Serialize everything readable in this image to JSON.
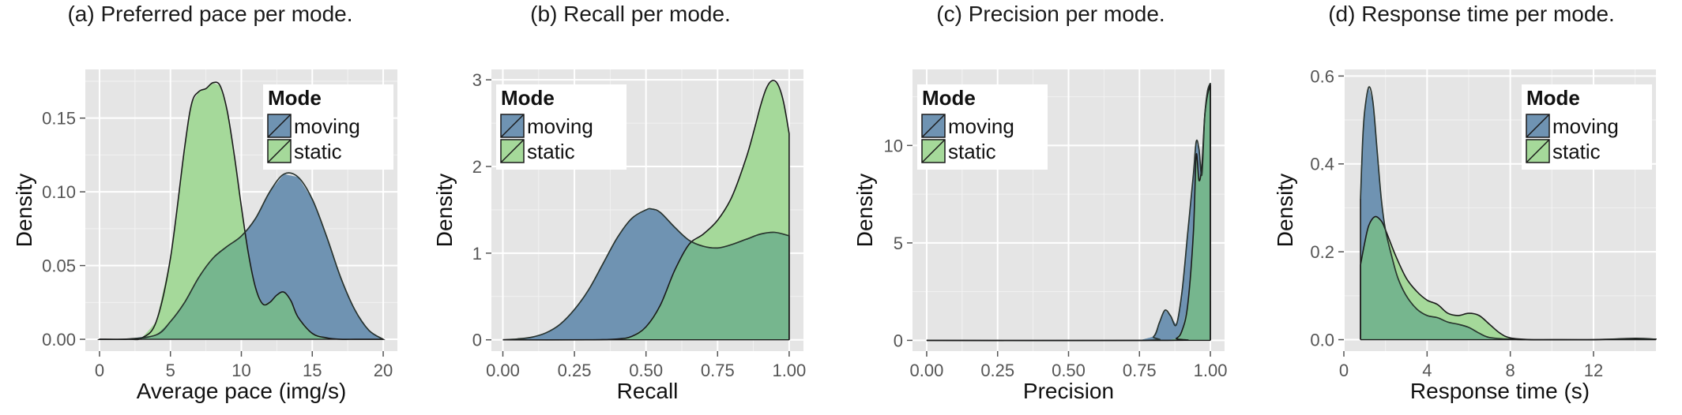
{
  "figure": {
    "panels": [
      {
        "id": "a",
        "title": "(a) Preferred pace per mode."
      },
      {
        "id": "b",
        "title": "(b) Recall per mode."
      },
      {
        "id": "c",
        "title": "(c) Precision per mode."
      },
      {
        "id": "d",
        "title": "(d) Response time per mode."
      }
    ]
  },
  "colors": {
    "moving": "#6f93b2",
    "static": "#a5d99a",
    "overlap": "#76b68e",
    "panel_bg": "#e5e5e5",
    "grid_major": "#ffffff",
    "grid_minor": "#f2f2f2",
    "outline": "#1a1a1a"
  },
  "chart_data": [
    {
      "type": "area",
      "title": "(a) Preferred pace per mode.",
      "xlabel": "Average pace (img/s)",
      "ylabel": "Density",
      "xlim": [
        -1,
        21
      ],
      "ylim": [
        -0.008,
        0.183
      ],
      "xticks": [
        0,
        5,
        10,
        15,
        20
      ],
      "xtick_labels": [
        "0",
        "5",
        "10",
        "15",
        "20"
      ],
      "yticks": [
        0,
        0.05,
        0.1,
        0.15
      ],
      "ytick_labels": [
        "0.00",
        "0.05",
        "0.10",
        "0.15"
      ],
      "grid": true,
      "legend": {
        "title": "Mode",
        "entries": [
          "moving",
          "static"
        ],
        "position": "top-right"
      },
      "series": [
        {
          "name": "moving",
          "x": [
            0,
            2,
            4,
            5,
            6,
            7,
            8,
            9,
            10,
            11,
            12,
            13,
            14,
            15,
            16,
            17,
            18,
            19,
            20
          ],
          "y": [
            0,
            0.0002,
            0.003,
            0.012,
            0.025,
            0.042,
            0.055,
            0.063,
            0.07,
            0.082,
            0.1,
            0.112,
            0.11,
            0.095,
            0.07,
            0.042,
            0.02,
            0.006,
            0
          ]
        },
        {
          "name": "static",
          "x": [
            0,
            2,
            3,
            4,
            5,
            6,
            6.5,
            7,
            7.5,
            8,
            8.5,
            9,
            9.5,
            10,
            10.5,
            11,
            11.5,
            12,
            12.5,
            13,
            13.5,
            14,
            15,
            16,
            17,
            18,
            19,
            20
          ],
          "y": [
            0,
            0,
            0.001,
            0.012,
            0.055,
            0.13,
            0.16,
            0.168,
            0.17,
            0.174,
            0.172,
            0.155,
            0.125,
            0.09,
            0.058,
            0.035,
            0.024,
            0.025,
            0.03,
            0.032,
            0.026,
            0.015,
            0.004,
            0.001,
            0,
            0,
            0,
            0
          ]
        }
      ]
    },
    {
      "type": "area",
      "title": "(b) Recall per mode.",
      "xlabel": "Recall",
      "ylabel": "Density",
      "xlim": [
        -0.04,
        1.05
      ],
      "ylim": [
        -0.13,
        3.12
      ],
      "xticks": [
        0,
        0.25,
        0.5,
        0.75,
        1
      ],
      "xtick_labels": [
        "0.00",
        "0.25",
        "0.50",
        "0.75",
        "1.00"
      ],
      "yticks": [
        0,
        1,
        2,
        3
      ],
      "ytick_labels": [
        "0",
        "1",
        "2",
        "3"
      ],
      "grid": true,
      "legend": {
        "title": "Mode",
        "entries": [
          "moving",
          "static"
        ],
        "position": "top-left"
      },
      "series": [
        {
          "name": "moving",
          "x": [
            0,
            0.05,
            0.1,
            0.15,
            0.2,
            0.25,
            0.3,
            0.35,
            0.4,
            0.45,
            0.5,
            0.52,
            0.55,
            0.6,
            0.65,
            0.7,
            0.75,
            0.8,
            0.85,
            0.9,
            0.95,
            1
          ],
          "y": [
            0,
            0.01,
            0.03,
            0.08,
            0.18,
            0.35,
            0.58,
            0.88,
            1.18,
            1.4,
            1.5,
            1.51,
            1.47,
            1.3,
            1.15,
            1.08,
            1.06,
            1.1,
            1.16,
            1.22,
            1.24,
            1.2
          ]
        },
        {
          "name": "static",
          "x": [
            0,
            0.3,
            0.4,
            0.45,
            0.5,
            0.55,
            0.6,
            0.65,
            0.7,
            0.75,
            0.8,
            0.85,
            0.88,
            0.9,
            0.92,
            0.94,
            0.96,
            0.98,
            1
          ],
          "y": [
            0,
            0,
            0.01,
            0.04,
            0.15,
            0.4,
            0.8,
            1.1,
            1.22,
            1.38,
            1.65,
            2.1,
            2.45,
            2.7,
            2.9,
            2.99,
            2.95,
            2.75,
            2.38
          ]
        }
      ]
    },
    {
      "type": "area",
      "title": "(c) Precision per mode.",
      "xlabel": "Precision",
      "ylabel": "Density",
      "xlim": [
        -0.05,
        1.05
      ],
      "ylim": [
        -0.55,
        13.9
      ],
      "xticks": [
        0,
        0.25,
        0.5,
        0.75,
        1
      ],
      "xtick_labels": [
        "0.00",
        "0.25",
        "0.50",
        "0.75",
        "1.00"
      ],
      "yticks": [
        0,
        5,
        10
      ],
      "ytick_labels": [
        "0",
        "5",
        "10"
      ],
      "grid": true,
      "legend": {
        "title": "Mode",
        "entries": [
          "moving",
          "static"
        ],
        "position": "top-left"
      },
      "series": [
        {
          "name": "moving",
          "x": [
            0,
            0.75,
            0.8,
            0.82,
            0.84,
            0.86,
            0.88,
            0.9,
            0.92,
            0.94,
            0.95,
            0.96,
            0.97,
            0.98,
            0.99,
            1
          ],
          "y": [
            0,
            0,
            0.2,
            0.9,
            1.55,
            1.25,
            0.8,
            2.5,
            5.5,
            8.5,
            10.2,
            9.8,
            8.5,
            11.5,
            12.8,
            13.2
          ]
        },
        {
          "name": "static",
          "x": [
            0,
            0.85,
            0.88,
            0.9,
            0.92,
            0.94,
            0.95,
            0.96,
            0.97,
            0.98,
            0.99,
            1
          ],
          "y": [
            0,
            0,
            0.1,
            0.5,
            1.8,
            5.5,
            9.5,
            8.2,
            9,
            11.5,
            12.6,
            13.1
          ]
        }
      ]
    },
    {
      "type": "area",
      "title": "(d) Response time per mode.",
      "xlabel": "Response time (s)",
      "ylabel": "Density",
      "xlim": [
        0,
        15
      ],
      "ylim": [
        -0.026,
        0.615
      ],
      "xticks": [
        0,
        4,
        8,
        12
      ],
      "xtick_labels": [
        "0",
        "4",
        "8",
        "12"
      ],
      "yticks": [
        0,
        0.2,
        0.4,
        0.6
      ],
      "ytick_labels": [
        "0.0",
        "0.2",
        "0.4",
        "0.6"
      ],
      "grid": true,
      "legend": {
        "title": "Mode",
        "entries": [
          "moving",
          "static"
        ],
        "position": "top-right"
      },
      "series": [
        {
          "name": "moving",
          "x": [
            0.8,
            0.9,
            1,
            1.2,
            1.4,
            1.6,
            1.8,
            2,
            2.3,
            2.6,
            3,
            3.5,
            4,
            4.5,
            5,
            5.5,
            6,
            6.5,
            7,
            8,
            9,
            10,
            12,
            14,
            15
          ],
          "y": [
            0.32,
            0.45,
            0.52,
            0.575,
            0.54,
            0.43,
            0.32,
            0.25,
            0.19,
            0.14,
            0.1,
            0.07,
            0.055,
            0.05,
            0.04,
            0.035,
            0.028,
            0.015,
            0.005,
            0.001,
            0,
            0,
            0,
            0.002,
            0.001
          ]
        },
        {
          "name": "static",
          "x": [
            0.8,
            1,
            1.2,
            1.5,
            1.8,
            2,
            2.5,
            3,
            3.5,
            4,
            4.5,
            5,
            5.5,
            6,
            6.5,
            7,
            7.5,
            8,
            9,
            10,
            12,
            14,
            15
          ],
          "y": [
            0.17,
            0.22,
            0.26,
            0.28,
            0.27,
            0.25,
            0.19,
            0.14,
            0.11,
            0.09,
            0.08,
            0.06,
            0.055,
            0.06,
            0.055,
            0.035,
            0.015,
            0.004,
            0,
            0,
            0,
            0.003,
            0.001
          ]
        }
      ]
    }
  ]
}
